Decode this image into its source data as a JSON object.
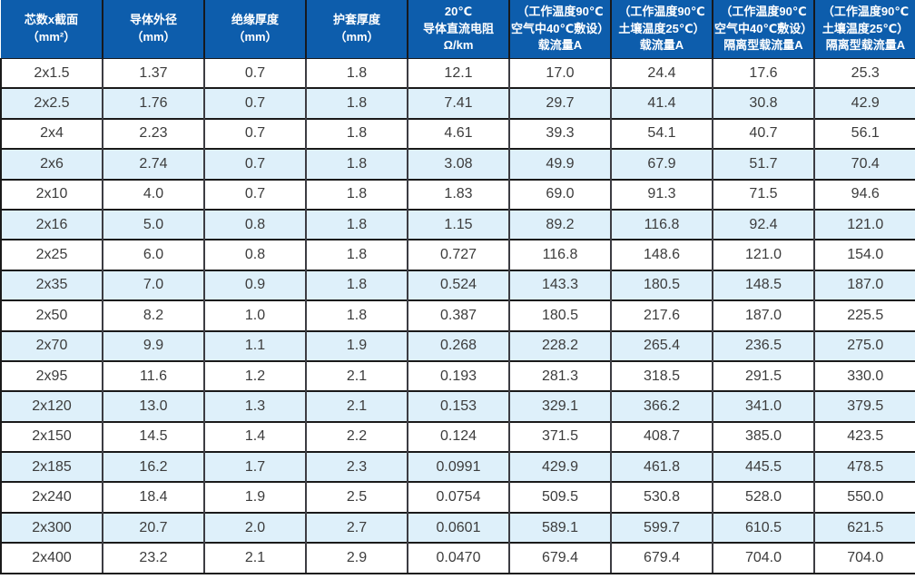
{
  "colors": {
    "header_bg": "#0d5dac",
    "header_separator": "#17191d",
    "stripe_bg": "#def0fa",
    "grid_line": "#1a1a1a",
    "header_text": "#ffffff",
    "body_text": "#3c3c3c"
  },
  "table": {
    "columns": [
      {
        "lines": [
          "芯数x截面",
          "（mm²）"
        ]
      },
      {
        "lines": [
          "导体外径",
          "（mm）"
        ]
      },
      {
        "lines": [
          "绝缘厚度",
          "（mm）"
        ]
      },
      {
        "lines": [
          "护套厚度",
          "（mm）"
        ]
      },
      {
        "lines": [
          "20℃",
          "导体直流电阻",
          "Ω/km"
        ]
      },
      {
        "lines": [
          "（工作温度90℃",
          "空气中40℃敷设）",
          "载流量A"
        ]
      },
      {
        "lines": [
          "（工作温度90℃",
          "土壤温度25℃）",
          "载流量A"
        ]
      },
      {
        "lines": [
          "（工作温度90℃",
          "空气中40℃敷设）",
          "隔离型载流量A"
        ]
      },
      {
        "lines": [
          "（工作温度90℃",
          "土壤温度25℃）",
          "隔离型载流量A"
        ]
      }
    ],
    "rows": [
      [
        "2x1.5",
        "1.37",
        "0.7",
        "1.8",
        "12.1",
        "17.0",
        "24.4",
        "17.6",
        "25.3"
      ],
      [
        "2x2.5",
        "1.76",
        "0.7",
        "1.8",
        "7.41",
        "29.7",
        "41.4",
        "30.8",
        "42.9"
      ],
      [
        "2x4",
        "2.23",
        "0.7",
        "1.8",
        "4.61",
        "39.3",
        "54.1",
        "40.7",
        "56.1"
      ],
      [
        "2x6",
        "2.74",
        "0.7",
        "1.8",
        "3.08",
        "49.9",
        "67.9",
        "51.7",
        "70.4"
      ],
      [
        "2x10",
        "4.0",
        "0.7",
        "1.8",
        "1.83",
        "69.0",
        "91.3",
        "71.5",
        "94.6"
      ],
      [
        "2x16",
        "5.0",
        "0.8",
        "1.8",
        "1.15",
        "89.2",
        "116.8",
        "92.4",
        "121.0"
      ],
      [
        "2x25",
        "6.0",
        "0.8",
        "1.8",
        "0.727",
        "116.8",
        "148.6",
        "121.0",
        "154.0"
      ],
      [
        "2x35",
        "7.0",
        "0.9",
        "1.8",
        "0.524",
        "143.3",
        "180.5",
        "148.5",
        "187.0"
      ],
      [
        "2x50",
        "8.2",
        "1.0",
        "1.8",
        "0.387",
        "180.5",
        "217.6",
        "187.0",
        "225.5"
      ],
      [
        "2x70",
        "9.9",
        "1.1",
        "1.9",
        "0.268",
        "228.2",
        "265.4",
        "236.5",
        "275.0"
      ],
      [
        "2x95",
        "11.6",
        "1.2",
        "2.1",
        "0.193",
        "281.3",
        "318.5",
        "291.5",
        "330.0"
      ],
      [
        "2x120",
        "13.0",
        "1.3",
        "2.1",
        "0.153",
        "329.1",
        "366.2",
        "341.0",
        "379.5"
      ],
      [
        "2x150",
        "14.5",
        "1.4",
        "2.2",
        "0.124",
        "371.5",
        "408.7",
        "385.0",
        "423.5"
      ],
      [
        "2x185",
        "16.2",
        "1.7",
        "2.3",
        "0.0991",
        "429.9",
        "461.8",
        "445.5",
        "478.5"
      ],
      [
        "2x240",
        "18.4",
        "1.9",
        "2.5",
        "0.0754",
        "509.5",
        "530.8",
        "528.0",
        "550.0"
      ],
      [
        "2x300",
        "20.7",
        "2.0",
        "2.7",
        "0.0601",
        "589.1",
        "599.7",
        "610.5",
        "621.5"
      ],
      [
        "2x400",
        "23.2",
        "2.1",
        "2.9",
        "0.0470",
        "679.4",
        "679.4",
        "704.0",
        "704.0"
      ]
    ]
  }
}
